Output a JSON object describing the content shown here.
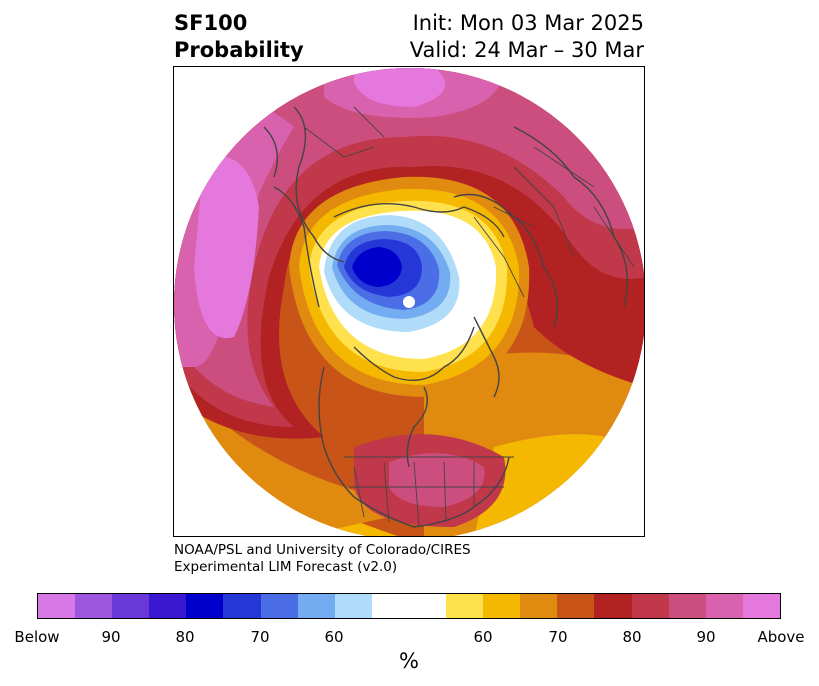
{
  "title": {
    "variable": "SF100",
    "kind": "Probability",
    "init": "Init: Mon 03 Mar 2025",
    "valid": "Valid: 24 Mar – 30 Mar"
  },
  "credit": {
    "line1": "NOAA/PSL and University of Colorado/CIRES",
    "line2": "Experimental LIM Forecast (v2.0)"
  },
  "colorbar": {
    "unit": "%",
    "colors": [
      "#d877e8",
      "#9c56e0",
      "#6a37d8",
      "#3a17d0",
      "#0000cc",
      "#2637d8",
      "#4b6ee6",
      "#73acf0",
      "#b0dcfa",
      "#ffffff",
      "#ffffff",
      "#ffe14e",
      "#f5b800",
      "#e08a10",
      "#c85418",
      "#b22222",
      "#c0384a",
      "#cc4e7e",
      "#d862ae",
      "#e578dc"
    ],
    "tick_labels": [
      "Below",
      "90",
      "80",
      "70",
      "60",
      "60",
      "70",
      "80",
      "90",
      "Above"
    ]
  },
  "map": {
    "projection": "north polar stereographic",
    "field_colors": {
      "blue_core": "#0000cc",
      "blue_mid": "#2637d8",
      "blue_light": "#4b6ee6",
      "blue_pale": "#73acf0",
      "blue_faint": "#b0dcfa",
      "yellow": "#ffe14e",
      "gold": "#f5b800",
      "orange": "#e08a10",
      "orange_red": "#c85418",
      "red": "#b22222",
      "rose": "#c0384a",
      "pink": "#cc4e7e",
      "magenta": "#d862ae",
      "violet": "#e578dc"
    }
  }
}
